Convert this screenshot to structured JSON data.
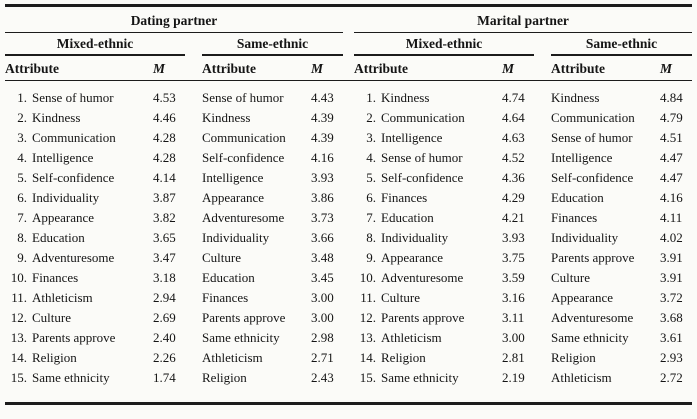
{
  "table": {
    "columns": {
      "attribute_label": "Attribute",
      "mean_label": "M"
    },
    "groups": [
      {
        "title": "Dating partner",
        "subgroups": [
          {
            "title": "Mixed-ethnic",
            "numbered": true,
            "rows": [
              {
                "num": "1.",
                "attribute": "Sense of humor",
                "m": "4.53"
              },
              {
                "num": "2.",
                "attribute": "Kindness",
                "m": "4.46"
              },
              {
                "num": "3.",
                "attribute": "Communication",
                "m": "4.28"
              },
              {
                "num": "4.",
                "attribute": "Intelligence",
                "m": "4.28"
              },
              {
                "num": "5.",
                "attribute": "Self-confidence",
                "m": "4.14"
              },
              {
                "num": "6.",
                "attribute": "Individuality",
                "m": "3.87"
              },
              {
                "num": "7.",
                "attribute": "Appearance",
                "m": "3.82"
              },
              {
                "num": "8.",
                "attribute": "Education",
                "m": "3.65"
              },
              {
                "num": "9.",
                "attribute": "Adventuresome",
                "m": "3.47"
              },
              {
                "num": "10.",
                "attribute": "Finances",
                "m": "3.18"
              },
              {
                "num": "11.",
                "attribute": "Athleticism",
                "m": "2.94"
              },
              {
                "num": "12.",
                "attribute": "Culture",
                "m": "2.69"
              },
              {
                "num": "13.",
                "attribute": "Parents approve",
                "m": "2.40"
              },
              {
                "num": "14.",
                "attribute": "Religion",
                "m": "2.26"
              },
              {
                "num": "15.",
                "attribute": "Same ethnicity",
                "m": "1.74"
              }
            ]
          },
          {
            "title": "Same-ethnic",
            "numbered": false,
            "rows": [
              {
                "attribute": "Sense of humor",
                "m": "4.43"
              },
              {
                "attribute": "Kindness",
                "m": "4.39"
              },
              {
                "attribute": "Communication",
                "m": "4.39"
              },
              {
                "attribute": "Self-confidence",
                "m": "4.16"
              },
              {
                "attribute": "Intelligence",
                "m": "3.93"
              },
              {
                "attribute": "Appearance",
                "m": "3.86"
              },
              {
                "attribute": "Adventuresome",
                "m": "3.73"
              },
              {
                "attribute": "Individuality",
                "m": "3.66"
              },
              {
                "attribute": "Culture",
                "m": "3.48"
              },
              {
                "attribute": "Education",
                "m": "3.45"
              },
              {
                "attribute": "Finances",
                "m": "3.00"
              },
              {
                "attribute": "Parents approve",
                "m": "3.00"
              },
              {
                "attribute": "Same ethnicity",
                "m": "2.98"
              },
              {
                "attribute": "Athleticism",
                "m": "2.71"
              },
              {
                "attribute": "Religion",
                "m": "2.43"
              }
            ]
          }
        ]
      },
      {
        "title": "Marital partner",
        "subgroups": [
          {
            "title": "Mixed-ethnic",
            "numbered": true,
            "rows": [
              {
                "num": "1.",
                "attribute": "Kindness",
                "m": "4.74"
              },
              {
                "num": "2.",
                "attribute": "Communication",
                "m": "4.64"
              },
              {
                "num": "3.",
                "attribute": "Intelligence",
                "m": "4.63"
              },
              {
                "num": "4.",
                "attribute": "Sense of humor",
                "m": "4.52"
              },
              {
                "num": "5.",
                "attribute": "Self-confidence",
                "m": "4.36"
              },
              {
                "num": "6.",
                "attribute": "Finances",
                "m": "4.29"
              },
              {
                "num": "7.",
                "attribute": "Education",
                "m": "4.21"
              },
              {
                "num": "8.",
                "attribute": "Individuality",
                "m": "3.93"
              },
              {
                "num": "9.",
                "attribute": "Appearance",
                "m": "3.75"
              },
              {
                "num": "10.",
                "attribute": "Adventuresome",
                "m": "3.59"
              },
              {
                "num": "11.",
                "attribute": "Culture",
                "m": "3.16"
              },
              {
                "num": "12.",
                "attribute": "Parents approve",
                "m": "3.11"
              },
              {
                "num": "13.",
                "attribute": "Athleticism",
                "m": "3.00"
              },
              {
                "num": "14.",
                "attribute": "Religion",
                "m": "2.81"
              },
              {
                "num": "15.",
                "attribute": "Same ethnicity",
                "m": "2.19"
              }
            ]
          },
          {
            "title": "Same-ethnic",
            "numbered": false,
            "rows": [
              {
                "attribute": "Kindness",
                "m": "4.84"
              },
              {
                "attribute": "Communication",
                "m": "4.79"
              },
              {
                "attribute": "Sense of humor",
                "m": "4.51"
              },
              {
                "attribute": "Intelligence",
                "m": "4.47"
              },
              {
                "attribute": "Self-confidence",
                "m": "4.47"
              },
              {
                "attribute": "Education",
                "m": "4.16"
              },
              {
                "attribute": "Finances",
                "m": "4.11"
              },
              {
                "attribute": "Individuality",
                "m": "4.02"
              },
              {
                "attribute": "Parents approve",
                "m": "3.91"
              },
              {
                "attribute": "Culture",
                "m": "3.91"
              },
              {
                "attribute": "Appearance",
                "m": "3.72"
              },
              {
                "attribute": "Adventuresome",
                "m": "3.68"
              },
              {
                "attribute": "Same ethnicity",
                "m": "3.61"
              },
              {
                "attribute": "Religion",
                "m": "2.93"
              },
              {
                "attribute": "Athleticism",
                "m": "2.72"
              }
            ]
          }
        ]
      }
    ]
  }
}
